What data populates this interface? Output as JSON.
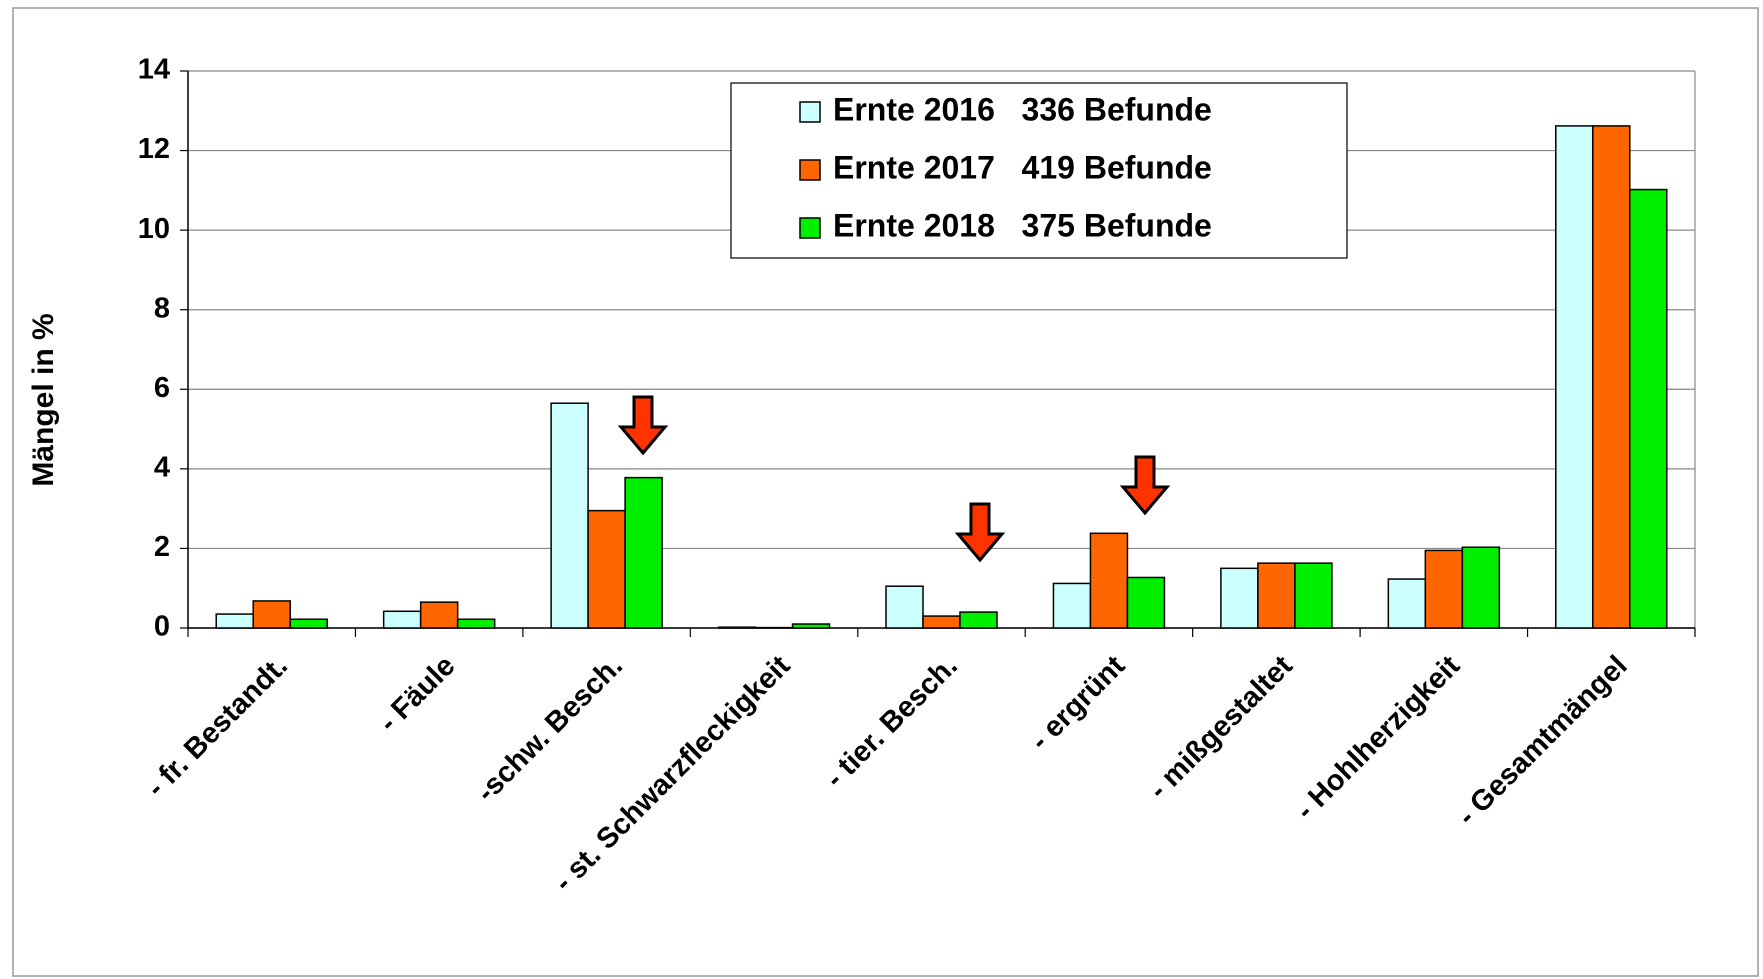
{
  "chart_data": {
    "type": "bar",
    "y_label": "Mängel in %",
    "categories": [
      "- fr. Bestandt.",
      "- Fäule",
      "-schw. Besch.",
      "- st. Schwarzfleckigkeit",
      "- tier. Besch.",
      "- ergrünt",
      "- mißgestaltet",
      "- Hohlherzigkeit",
      "- Gesamtmängel"
    ],
    "series": [
      {
        "name": "Ernte 2016   336 Befunde",
        "color": "#ccffff",
        "values": [
          0.35,
          0.42,
          5.65,
          0.02,
          1.05,
          1.12,
          1.5,
          1.23,
          12.62
        ]
      },
      {
        "name": "Ernte 2017   419 Befunde",
        "color": "#ff6600",
        "values": [
          0.68,
          0.65,
          2.95,
          0.01,
          0.3,
          2.38,
          1.63,
          1.95,
          12.62
        ]
      },
      {
        "name": "Ernte 2018   375 Befunde",
        "color": "#00ee00",
        "values": [
          0.22,
          0.22,
          3.78,
          0.1,
          0.4,
          1.27,
          1.63,
          2.03,
          11.02
        ]
      }
    ],
    "ylim": [
      0,
      14
    ],
    "yticks": [
      0,
      2,
      4,
      6,
      8,
      10,
      12,
      14
    ],
    "grid": true,
    "legend": "top"
  }
}
